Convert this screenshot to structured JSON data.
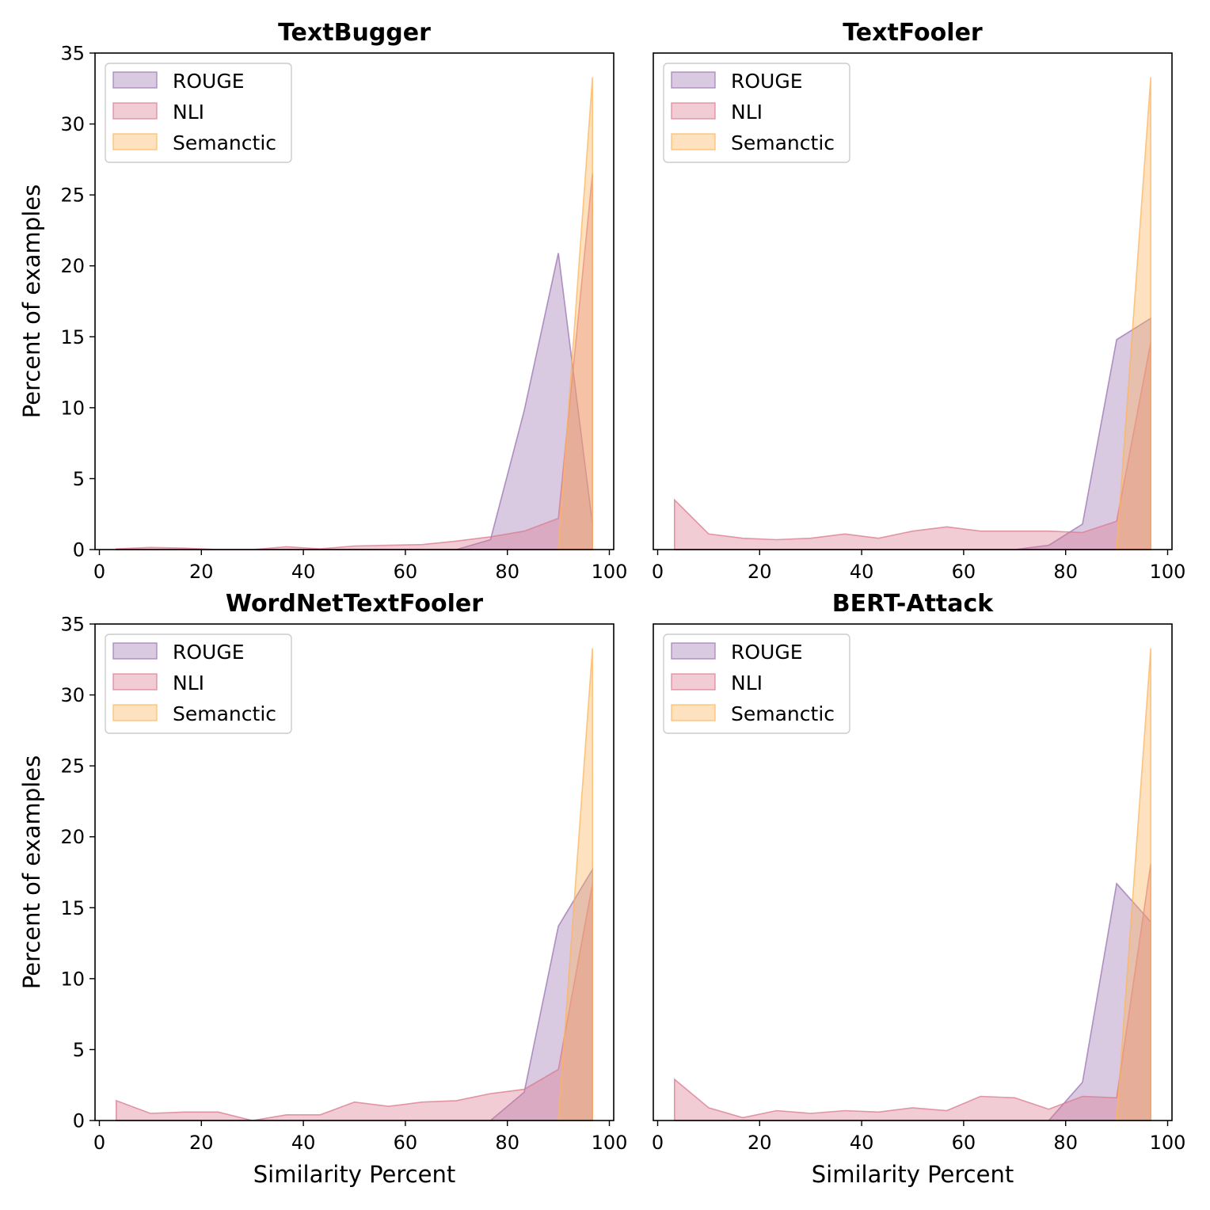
{
  "colors": {
    "ROUGE": "#9b72b0",
    "NLI": "#d97a8e",
    "Semanctic": "#fdb45a"
  },
  "chart_data": [
    {
      "type": "area",
      "title": "TextBugger",
      "xlabel": "",
      "ylabel": "Percent of examples",
      "xlim": [
        0,
        100
      ],
      "ylim": [
        0,
        35
      ],
      "xticks": [
        0,
        20,
        40,
        60,
        80,
        100
      ],
      "yticks": [
        0,
        5,
        10,
        15,
        20,
        25,
        30,
        35
      ],
      "show_yticks": true,
      "legend": "upper-left",
      "series": [
        {
          "name": "ROUGE",
          "x": [
            3.3,
            10,
            16.7,
            23.3,
            30,
            36.7,
            43.3,
            50,
            56.7,
            63.3,
            70,
            76.7,
            83.3,
            90,
            96.7
          ],
          "y": [
            0,
            0,
            0,
            0,
            0,
            0,
            0,
            0,
            0,
            0,
            0,
            0.7,
            9.8,
            20.9,
            1.8
          ]
        },
        {
          "name": "NLI",
          "x": [
            3.3,
            10,
            16.7,
            23.3,
            30,
            36.7,
            43.3,
            50,
            56.7,
            63.3,
            70,
            76.7,
            83.3,
            90,
            96.7
          ],
          "y": [
            0.05,
            0.15,
            0.1,
            0,
            0,
            0.2,
            0.05,
            0.25,
            0.3,
            0.35,
            0.6,
            0.9,
            1.3,
            2.2,
            26.5
          ]
        },
        {
          "name": "Semanctic",
          "x": [
            90,
            96.7
          ],
          "y": [
            0,
            33.3
          ]
        }
      ]
    },
    {
      "type": "area",
      "title": "TextFooler",
      "xlabel": "",
      "ylabel": "",
      "xlim": [
        0,
        100
      ],
      "ylim": [
        0,
        35
      ],
      "xticks": [
        0,
        20,
        40,
        60,
        80,
        100
      ],
      "yticks": [
        0,
        5,
        10,
        15,
        20,
        25,
        30,
        35
      ],
      "show_yticks": false,
      "legend": "upper-left",
      "series": [
        {
          "name": "ROUGE",
          "x": [
            3.3,
            10,
            16.7,
            23.3,
            30,
            36.7,
            43.3,
            50,
            56.7,
            63.3,
            70,
            76.7,
            83.3,
            90,
            96.7
          ],
          "y": [
            0,
            0,
            0,
            0,
            0,
            0,
            0,
            0,
            0,
            0,
            0,
            0.3,
            1.8,
            14.8,
            16.3
          ]
        },
        {
          "name": "NLI",
          "x": [
            3.3,
            10,
            16.7,
            23.3,
            30,
            36.7,
            43.3,
            50,
            56.7,
            63.3,
            70,
            76.7,
            83.3,
            90,
            96.7
          ],
          "y": [
            3.5,
            1.1,
            0.8,
            0.7,
            0.8,
            1.1,
            0.8,
            1.3,
            1.6,
            1.3,
            1.3,
            1.3,
            1.2,
            2.0,
            14.6
          ]
        },
        {
          "name": "Semanctic",
          "x": [
            90,
            96.7
          ],
          "y": [
            0,
            33.3
          ]
        }
      ]
    },
    {
      "type": "area",
      "title": "WordNetTextFooler",
      "xlabel": "Similarity Percent",
      "ylabel": "Percent of examples",
      "xlim": [
        0,
        100
      ],
      "ylim": [
        0,
        35
      ],
      "xticks": [
        0,
        20,
        40,
        60,
        80,
        100
      ],
      "yticks": [
        0,
        5,
        10,
        15,
        20,
        25,
        30,
        35
      ],
      "show_yticks": true,
      "legend": "upper-left",
      "series": [
        {
          "name": "ROUGE",
          "x": [
            3.3,
            10,
            16.7,
            23.3,
            30,
            36.7,
            43.3,
            50,
            56.7,
            63.3,
            70,
            76.7,
            83.3,
            90,
            96.7
          ],
          "y": [
            0,
            0,
            0,
            0,
            0,
            0,
            0,
            0,
            0,
            0,
            0,
            0,
            2.0,
            13.7,
            17.7
          ]
        },
        {
          "name": "NLI",
          "x": [
            3.3,
            10,
            16.7,
            23.3,
            30,
            36.7,
            43.3,
            50,
            56.7,
            63.3,
            70,
            76.7,
            83.3,
            90,
            96.7
          ],
          "y": [
            1.4,
            0.5,
            0.6,
            0.6,
            0,
            0.4,
            0.4,
            1.3,
            1.0,
            1.3,
            1.4,
            1.9,
            2.2,
            3.6,
            16.7
          ]
        },
        {
          "name": "Semanctic",
          "x": [
            90,
            96.7
          ],
          "y": [
            0,
            33.3
          ]
        }
      ]
    },
    {
      "type": "area",
      "title": "BERT-Attack",
      "xlabel": "Similarity Percent",
      "ylabel": "",
      "xlim": [
        0,
        100
      ],
      "ylim": [
        0,
        35
      ],
      "xticks": [
        0,
        20,
        40,
        60,
        80,
        100
      ],
      "yticks": [
        0,
        5,
        10,
        15,
        20,
        25,
        30,
        35
      ],
      "show_yticks": false,
      "legend": "upper-left",
      "series": [
        {
          "name": "ROUGE",
          "x": [
            3.3,
            10,
            16.7,
            23.3,
            30,
            36.7,
            43.3,
            50,
            56.7,
            63.3,
            70,
            76.7,
            83.3,
            90,
            96.7
          ],
          "y": [
            0,
            0,
            0,
            0,
            0,
            0,
            0,
            0,
            0,
            0,
            0,
            0,
            2.7,
            16.7,
            14.0
          ]
        },
        {
          "name": "NLI",
          "x": [
            3.3,
            10,
            16.7,
            23.3,
            30,
            36.7,
            43.3,
            50,
            56.7,
            63.3,
            70,
            76.7,
            83.3,
            90,
            96.7
          ],
          "y": [
            2.9,
            0.9,
            0.2,
            0.7,
            0.5,
            0.7,
            0.6,
            0.9,
            0.7,
            1.7,
            1.6,
            0.8,
            1.7,
            1.6,
            18.1
          ]
        },
        {
          "name": "Semanctic",
          "x": [
            90,
            96.7
          ],
          "y": [
            0,
            33.3
          ]
        }
      ]
    }
  ]
}
